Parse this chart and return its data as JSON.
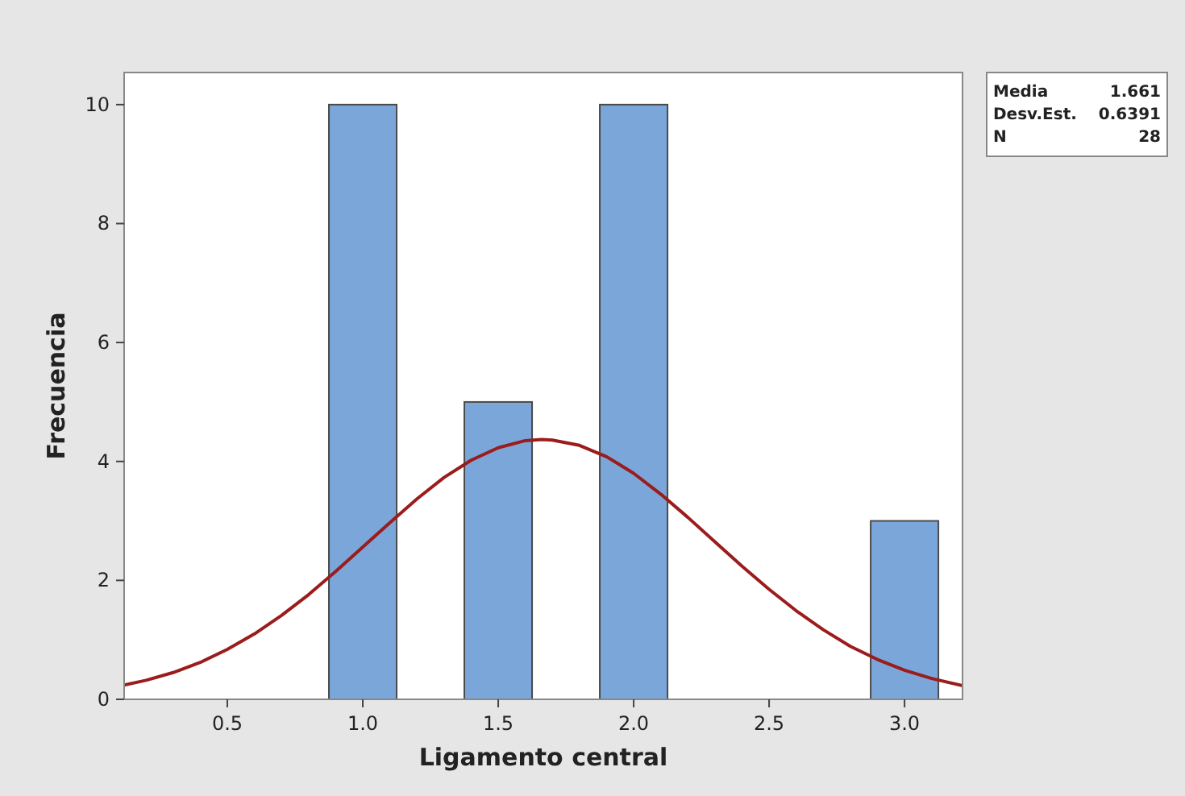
{
  "chart_data": {
    "type": "histogram",
    "xlabel": "Ligamento central",
    "ylabel": "Frecuencia",
    "bins": [
      0.875,
      1.125,
      1.375,
      1.625,
      1.875,
      2.125,
      2.375,
      2.625,
      2.875,
      3.125
    ],
    "values": [
      10,
      0,
      5,
      0,
      10,
      0,
      0,
      0,
      3
    ],
    "color": "#7ba6d9",
    "series": [
      {
        "type": "line",
        "color": "#9b1c1c",
        "x": [
          0.119,
          0.2,
          0.3,
          0.4,
          0.5,
          0.6,
          0.7,
          0.8,
          0.9,
          1.0,
          1.1,
          1.2,
          1.3,
          1.4,
          1.5,
          1.6,
          1.661,
          1.7,
          1.8,
          1.9,
          2.0,
          2.1,
          2.2,
          2.3,
          2.4,
          2.5,
          2.6,
          2.7,
          2.8,
          2.9,
          3.0,
          3.1,
          3.214
        ],
        "values": [
          0.24,
          0.32,
          0.45,
          0.62,
          0.84,
          1.1,
          1.41,
          1.76,
          2.15,
          2.56,
          2.97,
          3.37,
          3.73,
          4.02,
          4.23,
          4.35,
          4.37,
          4.36,
          4.27,
          4.08,
          3.8,
          3.45,
          3.06,
          2.65,
          2.24,
          1.85,
          1.49,
          1.17,
          0.89,
          0.67,
          0.49,
          0.35,
          0.23
        ]
      }
    ],
    "xlim": [
      0.119,
      3.214
    ],
    "xticks": [
      {
        "value": 0.5,
        "label": "0.5"
      },
      {
        "value": 1,
        "label": "1.0"
      },
      {
        "value": 1.5,
        "label": "1.5"
      },
      {
        "value": 2,
        "label": "2.0"
      },
      {
        "value": 2.5,
        "label": "2.5"
      },
      {
        "value": 3,
        "label": "3.0"
      }
    ],
    "ylim": [
      0,
      10.54
    ],
    "yticks": [
      0,
      2,
      4,
      6,
      8,
      10
    ],
    "annotations": [
      "Media 1.661",
      "Desv.Est. 0.6391",
      "N 28"
    ]
  }
}
